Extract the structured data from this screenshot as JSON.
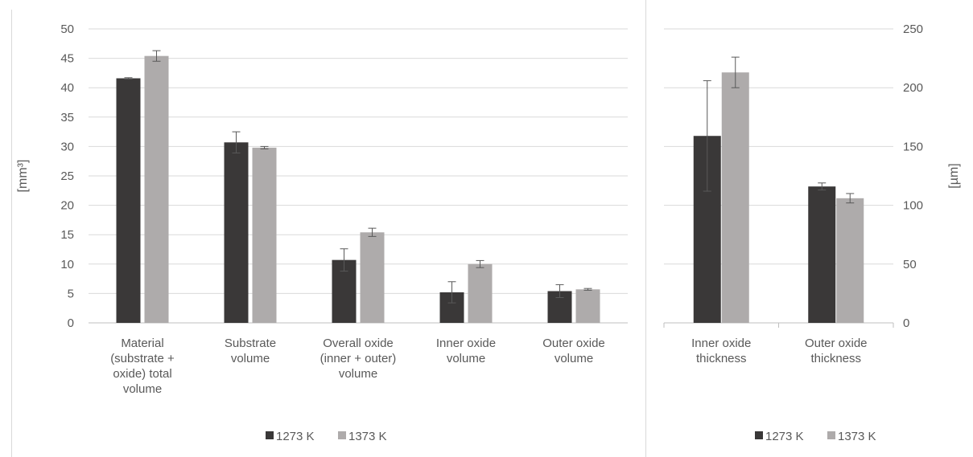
{
  "colors": {
    "series_1273": "#3a3838",
    "series_1373": "#aeabab",
    "grid": "#d9d9d9",
    "text": "#595959"
  },
  "chart_data": [
    {
      "type": "bar",
      "ylabel": "[mm³]",
      "ylim": [
        0,
        50
      ],
      "yticks": [
        "0",
        "5",
        "10",
        "15",
        "20",
        "25",
        "30",
        "35",
        "40",
        "45",
        "50"
      ],
      "categories": [
        [
          "Material",
          "(substrate +",
          "oxide) total",
          "volume"
        ],
        [
          "Substrate",
          "volume"
        ],
        [
          "Overall oxide",
          "(inner + outer)",
          "volume"
        ],
        [
          "Inner oxide",
          "volume"
        ],
        [
          "Outer oxide",
          "volume"
        ]
      ],
      "series": [
        {
          "name": "1273 K",
          "values": [
            41.6,
            30.7,
            10.7,
            5.2,
            5.4
          ],
          "errors": [
            0.1,
            1.8,
            1.9,
            1.8,
            1.1
          ]
        },
        {
          "name": "1373 K",
          "values": [
            45.4,
            29.8,
            15.4,
            10.0,
            5.7
          ],
          "errors": [
            0.9,
            0.2,
            0.7,
            0.6,
            0.15
          ]
        }
      ],
      "grid": true,
      "legend": "bottom-center"
    },
    {
      "type": "bar",
      "ylabel": "[µm]",
      "ylim": [
        0,
        250
      ],
      "yticks": [
        "0",
        "50",
        "100",
        "150",
        "200",
        "250"
      ],
      "categories": [
        [
          "Inner oxide",
          "thickness"
        ],
        [
          "Outer oxide",
          "thickness"
        ]
      ],
      "series": [
        {
          "name": "1273 K",
          "values": [
            159,
            116
          ],
          "errors": [
            47,
            3
          ]
        },
        {
          "name": "1373 K",
          "values": [
            213,
            106
          ],
          "errors": [
            13,
            4
          ]
        }
      ],
      "grid": true,
      "legend": "bottom-right"
    }
  ]
}
